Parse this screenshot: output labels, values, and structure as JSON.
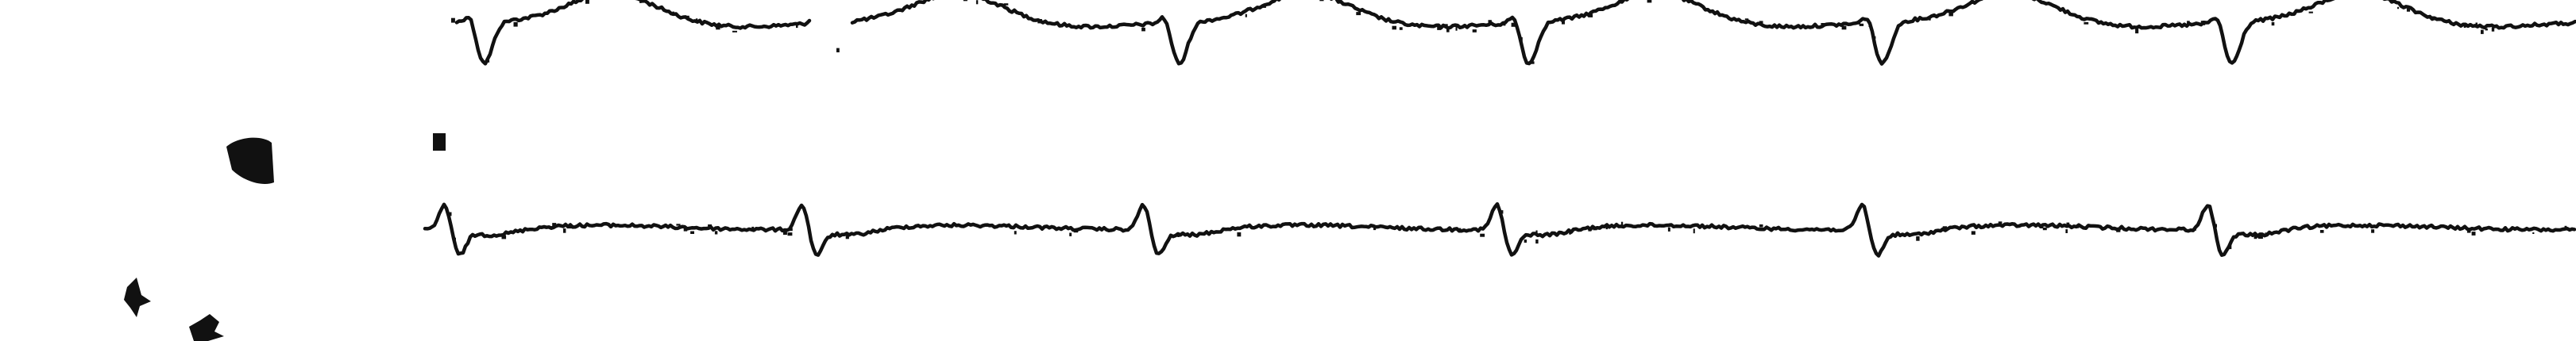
{
  "strip": {
    "ink_color": "#111111",
    "background": "#ffffff",
    "leads": [
      {
        "id": "lead-upper",
        "beats": 6,
        "morphology": "inverted-qrs-with-upright-t"
      },
      {
        "id": "lead-lower",
        "beats": 6,
        "morphology": "small-upright-qrs-flat-t"
      }
    ],
    "artifacts": [
      "ink-blot",
      "ink-speck",
      "ink-speck",
      "ink-speck"
    ]
  }
}
